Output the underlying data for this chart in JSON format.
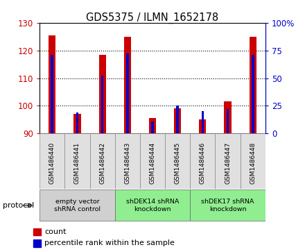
{
  "title": "GDS5375 / ILMN_1652178",
  "samples": [
    "GSM1486440",
    "GSM1486441",
    "GSM1486442",
    "GSM1486443",
    "GSM1486444",
    "GSM1486445",
    "GSM1486446",
    "GSM1486447",
    "GSM1486448"
  ],
  "count_values": [
    125.5,
    97.0,
    118.5,
    125.0,
    95.5,
    99.0,
    95.0,
    101.5,
    125.0
  ],
  "percentile_values": [
    71,
    19,
    52,
    72,
    11,
    25,
    20,
    22,
    71
  ],
  "ylim_left": [
    90,
    130
  ],
  "ylim_right": [
    0,
    100
  ],
  "yticks_left": [
    90,
    100,
    110,
    120,
    130
  ],
  "yticks_right": [
    0,
    25,
    50,
    75,
    100
  ],
  "groups": [
    {
      "label": "empty vector\nshRNA control",
      "start": 0,
      "end": 3,
      "color": "#d0d0d0"
    },
    {
      "label": "shDEK14 shRNA\nknockdown",
      "start": 3,
      "end": 6,
      "color": "#90ee90"
    },
    {
      "label": "shDEK17 shRNA\nknockdown",
      "start": 6,
      "end": 9,
      "color": "#90ee90"
    }
  ],
  "red_color": "#cc0000",
  "blue_color": "#0000cc",
  "left_axis_color": "#cc0000",
  "right_axis_color": "#0000cc",
  "legend_items": [
    {
      "label": "count",
      "color": "#cc0000"
    },
    {
      "label": "percentile rank within the sample",
      "color": "#0000cc"
    }
  ]
}
